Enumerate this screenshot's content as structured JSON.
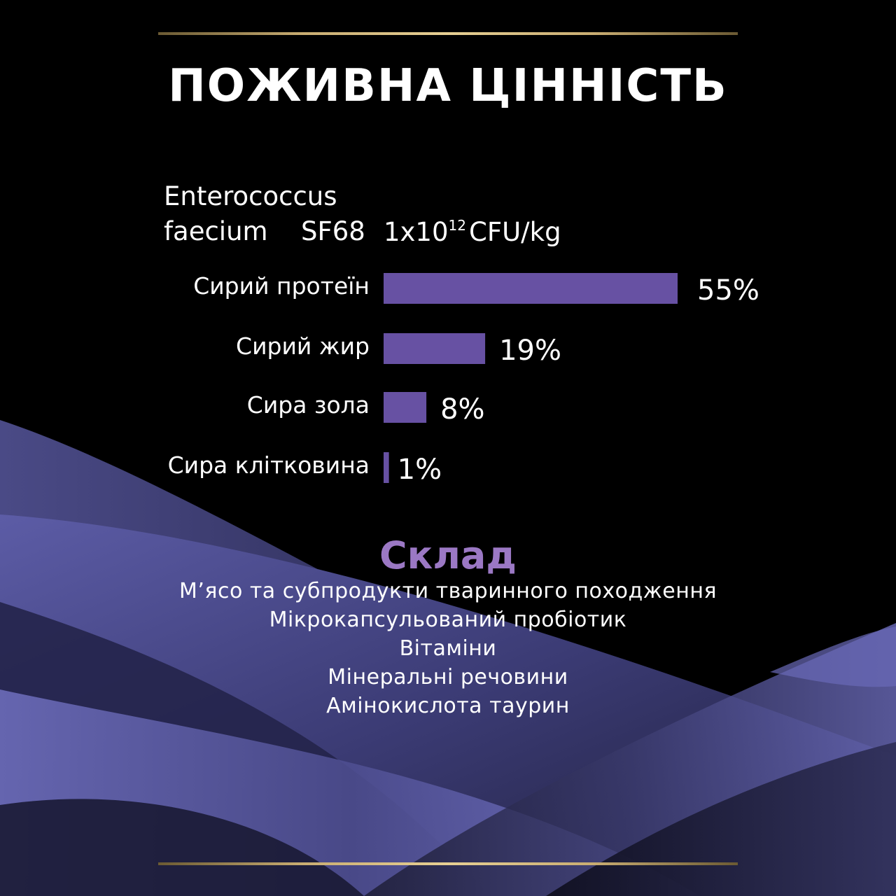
{
  "title": "ПОЖИВНА ЦІННІСТЬ",
  "probiotic": {
    "name_line1": "Enterococcus",
    "name_line2": "faecium",
    "strain": "SF68",
    "amount_base": "1x10",
    "amount_exponent": "12",
    "unit": "CFU/kg"
  },
  "chart_data": {
    "type": "bar",
    "orientation": "horizontal",
    "categories": [
      "Сирий протеїн",
      "Сирий жир",
      "Сира зола",
      "Сира клітковина"
    ],
    "values": [
      55,
      19,
      8,
      1
    ],
    "value_labels": [
      "55%",
      "19%",
      "8%",
      "1%"
    ],
    "unit": "%",
    "title": "",
    "xlabel": "",
    "ylabel": "",
    "bar_color": "#6751a3",
    "grid": false,
    "legend": "none"
  },
  "composition": {
    "title": "Склад",
    "items": [
      "М’ясо та субпродукти тваринного походження",
      "Мікрокапсульований пробіотик",
      "Вітаміни",
      "Мінеральні речовини",
      "Амінокислота таурин"
    ]
  },
  "colors": {
    "background": "#000000",
    "accent_purple": "#9b78c4",
    "bar_purple": "#6751a3",
    "gold_line": "#c9ad72",
    "text": "#ffffff"
  }
}
